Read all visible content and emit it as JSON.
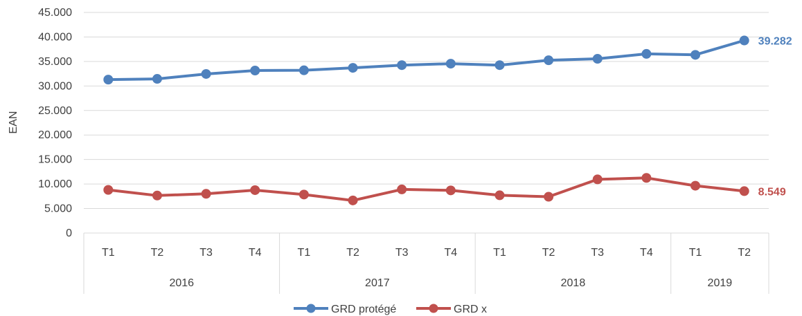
{
  "chart_data": {
    "type": "line",
    "ylabel": "EAN",
    "xlabel": "",
    "ylim": [
      0,
      45000
    ],
    "ytick_step": 5000,
    "ytick_labels": [
      "0",
      "5.000",
      "10.000",
      "15.000",
      "20.000",
      "25.000",
      "30.000",
      "35.000",
      "40.000",
      "45.000"
    ],
    "categories": [
      "T1",
      "T2",
      "T3",
      "T4",
      "T1",
      "T2",
      "T3",
      "T4",
      "T1",
      "T2",
      "T3",
      "T4",
      "T1",
      "T2"
    ],
    "year_groups": [
      {
        "label": "2016",
        "count": 4
      },
      {
        "label": "2017",
        "count": 4
      },
      {
        "label": "2018",
        "count": 4
      },
      {
        "label": "2019",
        "count": 2
      }
    ],
    "grid": true,
    "legend_position": "bottom",
    "series": [
      {
        "name": "GRD protégé",
        "color": "#4F81BD",
        "values": [
          31300,
          31450,
          32450,
          33150,
          33200,
          33700,
          34250,
          34550,
          34250,
          35250,
          35550,
          36550,
          36350,
          39282
        ],
        "end_label": "39.282"
      },
      {
        "name": "GRD x",
        "color": "#C0504D",
        "values": [
          8800,
          7650,
          8000,
          8750,
          7850,
          6650,
          8900,
          8700,
          7700,
          7400,
          10950,
          11250,
          9650,
          8549
        ],
        "end_label": "8.549"
      }
    ]
  }
}
